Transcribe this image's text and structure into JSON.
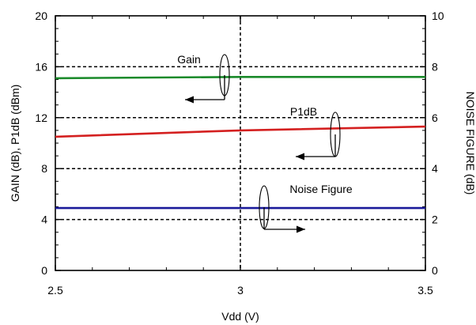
{
  "chart_data": {
    "type": "line",
    "xlabel": "Vdd (V)",
    "ylabel_left": "GAIN (dB), P1dB (dBm)",
    "ylabel_right": "NOISE FIGURE (dB)",
    "xlim": [
      2.5,
      3.5
    ],
    "ylim_left": [
      0,
      20
    ],
    "ylim_right": [
      0,
      10
    ],
    "x_ticks": [
      2.5,
      3,
      3.5
    ],
    "x_tick_labels": [
      "2.5",
      "3",
      "3.5"
    ],
    "y_left_ticks": [
      0,
      4,
      8,
      12,
      16,
      20
    ],
    "y_left_tick_labels": [
      "0",
      "4",
      "8",
      "12",
      "16",
      "20"
    ],
    "y_right_ticks": [
      0,
      2,
      4,
      6,
      8,
      10
    ],
    "y_right_tick_labels": [
      "0",
      "2",
      "4",
      "6",
      "8",
      "10"
    ],
    "grid": {
      "horizontal_dashed_at_left": [
        4,
        8,
        12,
        16
      ],
      "vertical_dashed_at_x": [
        3
      ]
    },
    "series": [
      {
        "name": "Gain",
        "axis": "left",
        "color": "#1a8a2a",
        "x": [
          2.5,
          3.0,
          3.5
        ],
        "y": [
          15.1,
          15.2,
          15.2
        ]
      },
      {
        "name": "P1dB",
        "axis": "left",
        "color": "#d42020",
        "x": [
          2.5,
          3.0,
          3.5
        ],
        "y": [
          10.5,
          11.0,
          11.3
        ]
      },
      {
        "name": "Noise Figure",
        "axis": "right",
        "color": "#1a1a9a",
        "x": [
          2.5,
          3.0,
          3.5
        ],
        "y": [
          2.45,
          2.45,
          2.45
        ]
      }
    ],
    "annotations": [
      {
        "text": "Gain",
        "points_to": "left axis"
      },
      {
        "text": "P1dB",
        "points_to": "left axis"
      },
      {
        "text": "Noise Figure",
        "points_to": "right axis"
      }
    ]
  }
}
